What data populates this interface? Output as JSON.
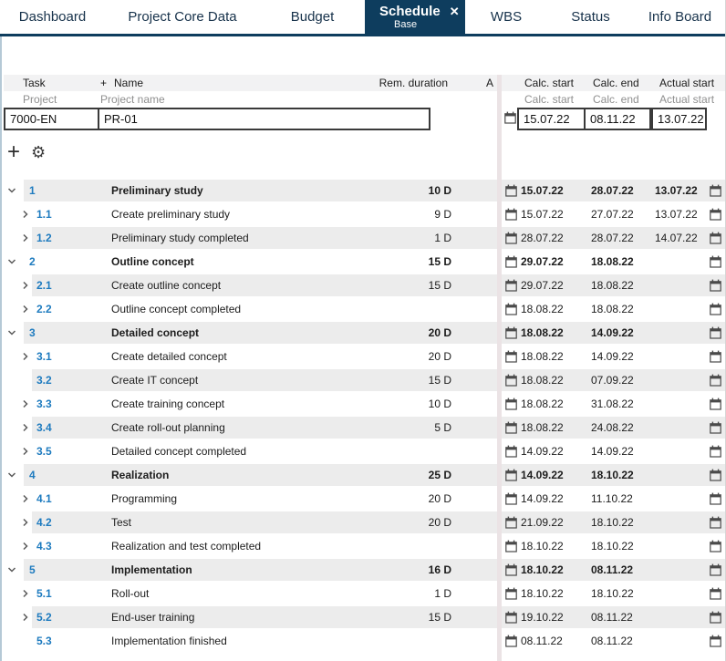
{
  "tabs": [
    {
      "label": "Dashboard"
    },
    {
      "label": "Project Core Data"
    },
    {
      "label": "Budget"
    },
    {
      "label": "Schedule",
      "subtitle": "Base",
      "active": true,
      "close_label": "✕"
    },
    {
      "label": "WBS"
    },
    {
      "label": "Status"
    },
    {
      "label": "Info Board"
    }
  ],
  "table": {
    "left_header": {
      "task": "Task",
      "add_column": "+",
      "name": "Name",
      "rem_duration": "Rem. duration",
      "a": "A",
      "project": "Project",
      "project_name": "Project name"
    },
    "right_header": {
      "calc_start": "Calc. start",
      "calc_end": "Calc. end",
      "actual_start": "Actual start",
      "calc_start_sub": "Calc. start",
      "calc_end_sub": "Calc. end",
      "actual_start_sub": "Actual start"
    },
    "project_row": {
      "task": "7000-EN",
      "name": "PR-01",
      "calc_start": "15.07.22",
      "calc_end": "08.11.22",
      "actual_start": "13.07.22"
    },
    "toolbar": {
      "add_icon": "+",
      "settings_icon": "⚙"
    },
    "rows": [
      {
        "num": "1",
        "level": 1,
        "chevron": "down",
        "name": "Preliminary study",
        "duration": "10 D",
        "calc_start": "15.07.22",
        "calc_end": "28.07.22",
        "actual_start": "13.07.22",
        "bold": true,
        "striped": true
      },
      {
        "num": "1.1",
        "level": 2,
        "chevron": "right",
        "name": "Create preliminary study",
        "duration": "9 D",
        "calc_start": "15.07.22",
        "calc_end": "27.07.22",
        "actual_start": "13.07.22",
        "bold": false,
        "striped": false
      },
      {
        "num": "1.2",
        "level": 2,
        "chevron": "right",
        "name": "Preliminary study completed",
        "duration": "1 D",
        "calc_start": "28.07.22",
        "calc_end": "28.07.22",
        "actual_start": "14.07.22",
        "bold": false,
        "striped": true
      },
      {
        "num": "2",
        "level": 1,
        "chevron": "down",
        "name": "Outline concept",
        "duration": "15 D",
        "calc_start": "29.07.22",
        "calc_end": "18.08.22",
        "actual_start": "",
        "bold": true,
        "striped": false
      },
      {
        "num": "2.1",
        "level": 2,
        "chevron": "right",
        "name": "Create outline concept",
        "duration": "15 D",
        "calc_start": "29.07.22",
        "calc_end": "18.08.22",
        "actual_start": "",
        "bold": false,
        "striped": true
      },
      {
        "num": "2.2",
        "level": 2,
        "chevron": "right",
        "name": "Outline concept completed",
        "duration": "",
        "calc_start": "18.08.22",
        "calc_end": "18.08.22",
        "actual_start": "",
        "bold": false,
        "striped": false
      },
      {
        "num": "3",
        "level": 1,
        "chevron": "down",
        "name": "Detailed concept",
        "duration": "20 D",
        "calc_start": "18.08.22",
        "calc_end": "14.09.22",
        "actual_start": "",
        "bold": true,
        "striped": true
      },
      {
        "num": "3.1",
        "level": 2,
        "chevron": "right",
        "name": "Create detailed concept",
        "duration": "20 D",
        "calc_start": "18.08.22",
        "calc_end": "14.09.22",
        "actual_start": "",
        "bold": false,
        "striped": false
      },
      {
        "num": "3.2",
        "level": 2,
        "chevron": "none",
        "name": "Create IT concept",
        "duration": "15 D",
        "calc_start": "18.08.22",
        "calc_end": "07.09.22",
        "actual_start": "",
        "bold": false,
        "striped": true
      },
      {
        "num": "3.3",
        "level": 2,
        "chevron": "right",
        "name": "Create training concept",
        "duration": "10 D",
        "calc_start": "18.08.22",
        "calc_end": "31.08.22",
        "actual_start": "",
        "bold": false,
        "striped": false
      },
      {
        "num": "3.4",
        "level": 2,
        "chevron": "right",
        "name": "Create roll-out planning",
        "duration": "5 D",
        "calc_start": "18.08.22",
        "calc_end": "24.08.22",
        "actual_start": "",
        "bold": false,
        "striped": true
      },
      {
        "num": "3.5",
        "level": 2,
        "chevron": "right",
        "name": "Detailed concept completed",
        "duration": "",
        "calc_start": "14.09.22",
        "calc_end": "14.09.22",
        "actual_start": "",
        "bold": false,
        "striped": false
      },
      {
        "num": "4",
        "level": 1,
        "chevron": "down",
        "name": "Realization",
        "duration": "25 D",
        "calc_start": "14.09.22",
        "calc_end": "18.10.22",
        "actual_start": "",
        "bold": true,
        "striped": true
      },
      {
        "num": "4.1",
        "level": 2,
        "chevron": "right",
        "name": "Programming",
        "duration": "20 D",
        "calc_start": "14.09.22",
        "calc_end": "11.10.22",
        "actual_start": "",
        "bold": false,
        "striped": false
      },
      {
        "num": "4.2",
        "level": 2,
        "chevron": "right",
        "name": "Test",
        "duration": "20 D",
        "calc_start": "21.09.22",
        "calc_end": "18.10.22",
        "actual_start": "",
        "bold": false,
        "striped": true
      },
      {
        "num": "4.3",
        "level": 2,
        "chevron": "right",
        "name": "Realization and test completed",
        "duration": "",
        "calc_start": "18.10.22",
        "calc_end": "18.10.22",
        "actual_start": "",
        "bold": false,
        "striped": false
      },
      {
        "num": "5",
        "level": 1,
        "chevron": "down",
        "name": "Implementation",
        "duration": "16 D",
        "calc_start": "18.10.22",
        "calc_end": "08.11.22",
        "actual_start": "",
        "bold": true,
        "striped": true
      },
      {
        "num": "5.1",
        "level": 2,
        "chevron": "right",
        "name": "Roll-out",
        "duration": "1 D",
        "calc_start": "18.10.22",
        "calc_end": "18.10.22",
        "actual_start": "",
        "bold": false,
        "striped": false
      },
      {
        "num": "5.2",
        "level": 2,
        "chevron": "right",
        "name": "End-user training",
        "duration": "15 D",
        "calc_start": "19.10.22",
        "calc_end": "08.11.22",
        "actual_start": "",
        "bold": false,
        "striped": true
      },
      {
        "num": "5.3",
        "level": 2,
        "chevron": "none",
        "name": "Implementation finished",
        "duration": "",
        "calc_start": "08.11.22",
        "calc_end": "08.11.22",
        "actual_start": "",
        "bold": false,
        "striped": false
      }
    ]
  },
  "colors": {
    "accent_navy": "#0e3d5e",
    "task_number_blue": "#1e7bbf",
    "stripe_gray": "#ececec",
    "header_band_gray": "#f2f2f3",
    "splitter": "#ebe3e5"
  }
}
